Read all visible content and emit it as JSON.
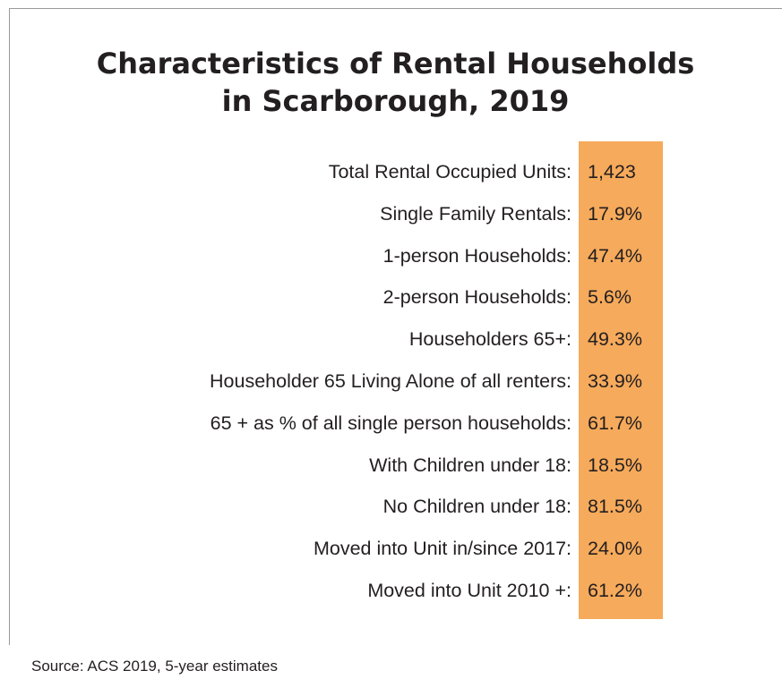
{
  "header": {
    "title_lines": [
      "Characteristics of Rental Households",
      "in Scarborough, 2019"
    ]
  },
  "table": {
    "rows": [
      [
        "Total Rental Occupied Units:",
        "1,423"
      ],
      [
        "Single Family Rentals:",
        "17.9%"
      ],
      [
        "1-person Households:",
        "47.4%"
      ],
      [
        "2-person Households:",
        "5.6%"
      ],
      [
        "Householders 65+:",
        "49.3%"
      ],
      [
        "Householder 65 Living Alone of all renters:",
        "33.9%"
      ],
      [
        "65 + as % of all single person households:",
        "61.7%"
      ],
      [
        "With Children under 18:",
        "18.5%"
      ],
      [
        "No Children under 18:",
        "81.5%"
      ],
      [
        "Moved into Unit in/since 2017:",
        "24.0%"
      ],
      [
        "Moved into Unit 2010 +:",
        "61.2%"
      ]
    ]
  },
  "footer": {
    "source": "Source: ACS 2019, 5-year estimates"
  }
}
